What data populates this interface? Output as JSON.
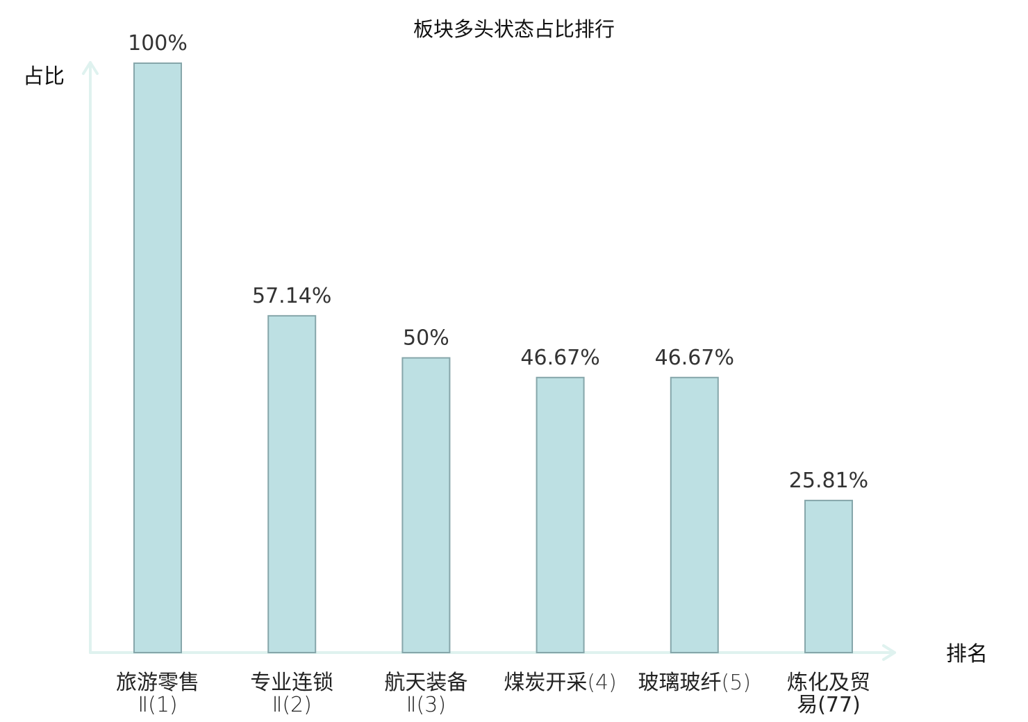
{
  "chart_data": {
    "type": "bar",
    "title": "板块多头状态占比排行",
    "ylabel": "占比",
    "xlabel": "排名",
    "ylim": [
      0,
      100
    ],
    "grid": false,
    "categories": [
      {
        "name": "旅游零售",
        "suffix": "Ⅱ(1)",
        "highlight": false
      },
      {
        "name": "专业连锁",
        "suffix": "Ⅱ(2)",
        "highlight": false
      },
      {
        "name": "航天装备",
        "suffix": "Ⅱ(3)",
        "highlight": false
      },
      {
        "name": "煤炭开采",
        "suffix": "(4)",
        "highlight": false
      },
      {
        "name": "玻璃玻纤",
        "suffix": "(5)",
        "highlight": false
      },
      {
        "name": "炼化及贸",
        "suffix": "易(77)",
        "highlight": true
      }
    ],
    "values": [
      100,
      57.14,
      50,
      46.67,
      46.67,
      25.81
    ],
    "value_labels": [
      "100%",
      "57.14%",
      "50%",
      "46.67%",
      "46.67%",
      "25.81%"
    ],
    "colors": {
      "bar_fill": "#bde0e3",
      "bar_stroke": "#86a6aa",
      "axis": "#dff2ef",
      "highlight_text": "#e8191b",
      "text": "#222222"
    }
  }
}
